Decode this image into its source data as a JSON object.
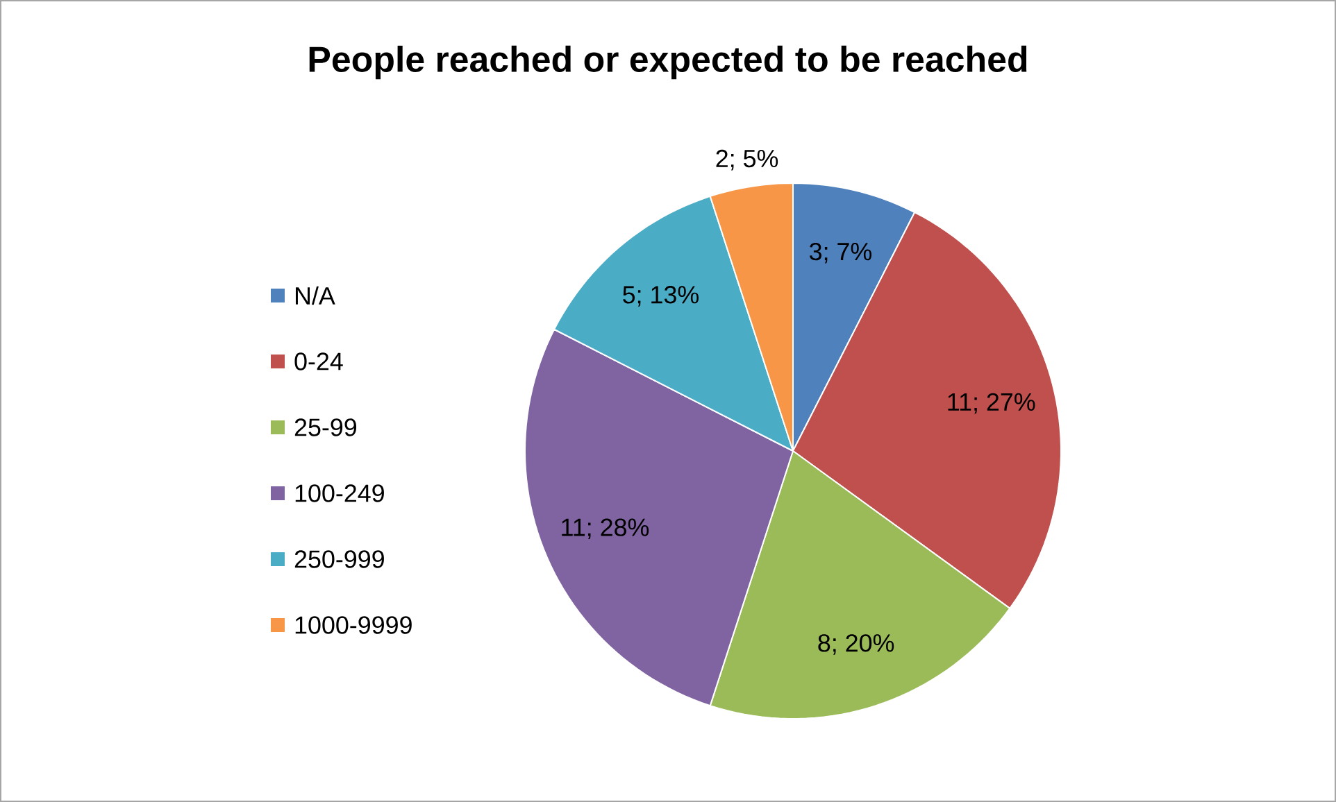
{
  "chart_data": {
    "type": "pie",
    "title": "People reached or expected to be reached",
    "categories": [
      "N/A",
      "0-24",
      "25-99",
      "100-249",
      "250-999",
      "1000-9999"
    ],
    "values": [
      3,
      11,
      8,
      11,
      5,
      2
    ],
    "value_labels": [
      "3; 7%",
      "11; 27%",
      "8; 20%",
      "11; 28%",
      "5; 13%",
      "2; 5%"
    ],
    "colors": [
      "#4f81bd",
      "#c0504d",
      "#9bbb59",
      "#8064a2",
      "#4bacc6",
      "#f79646"
    ],
    "legend": "left"
  }
}
